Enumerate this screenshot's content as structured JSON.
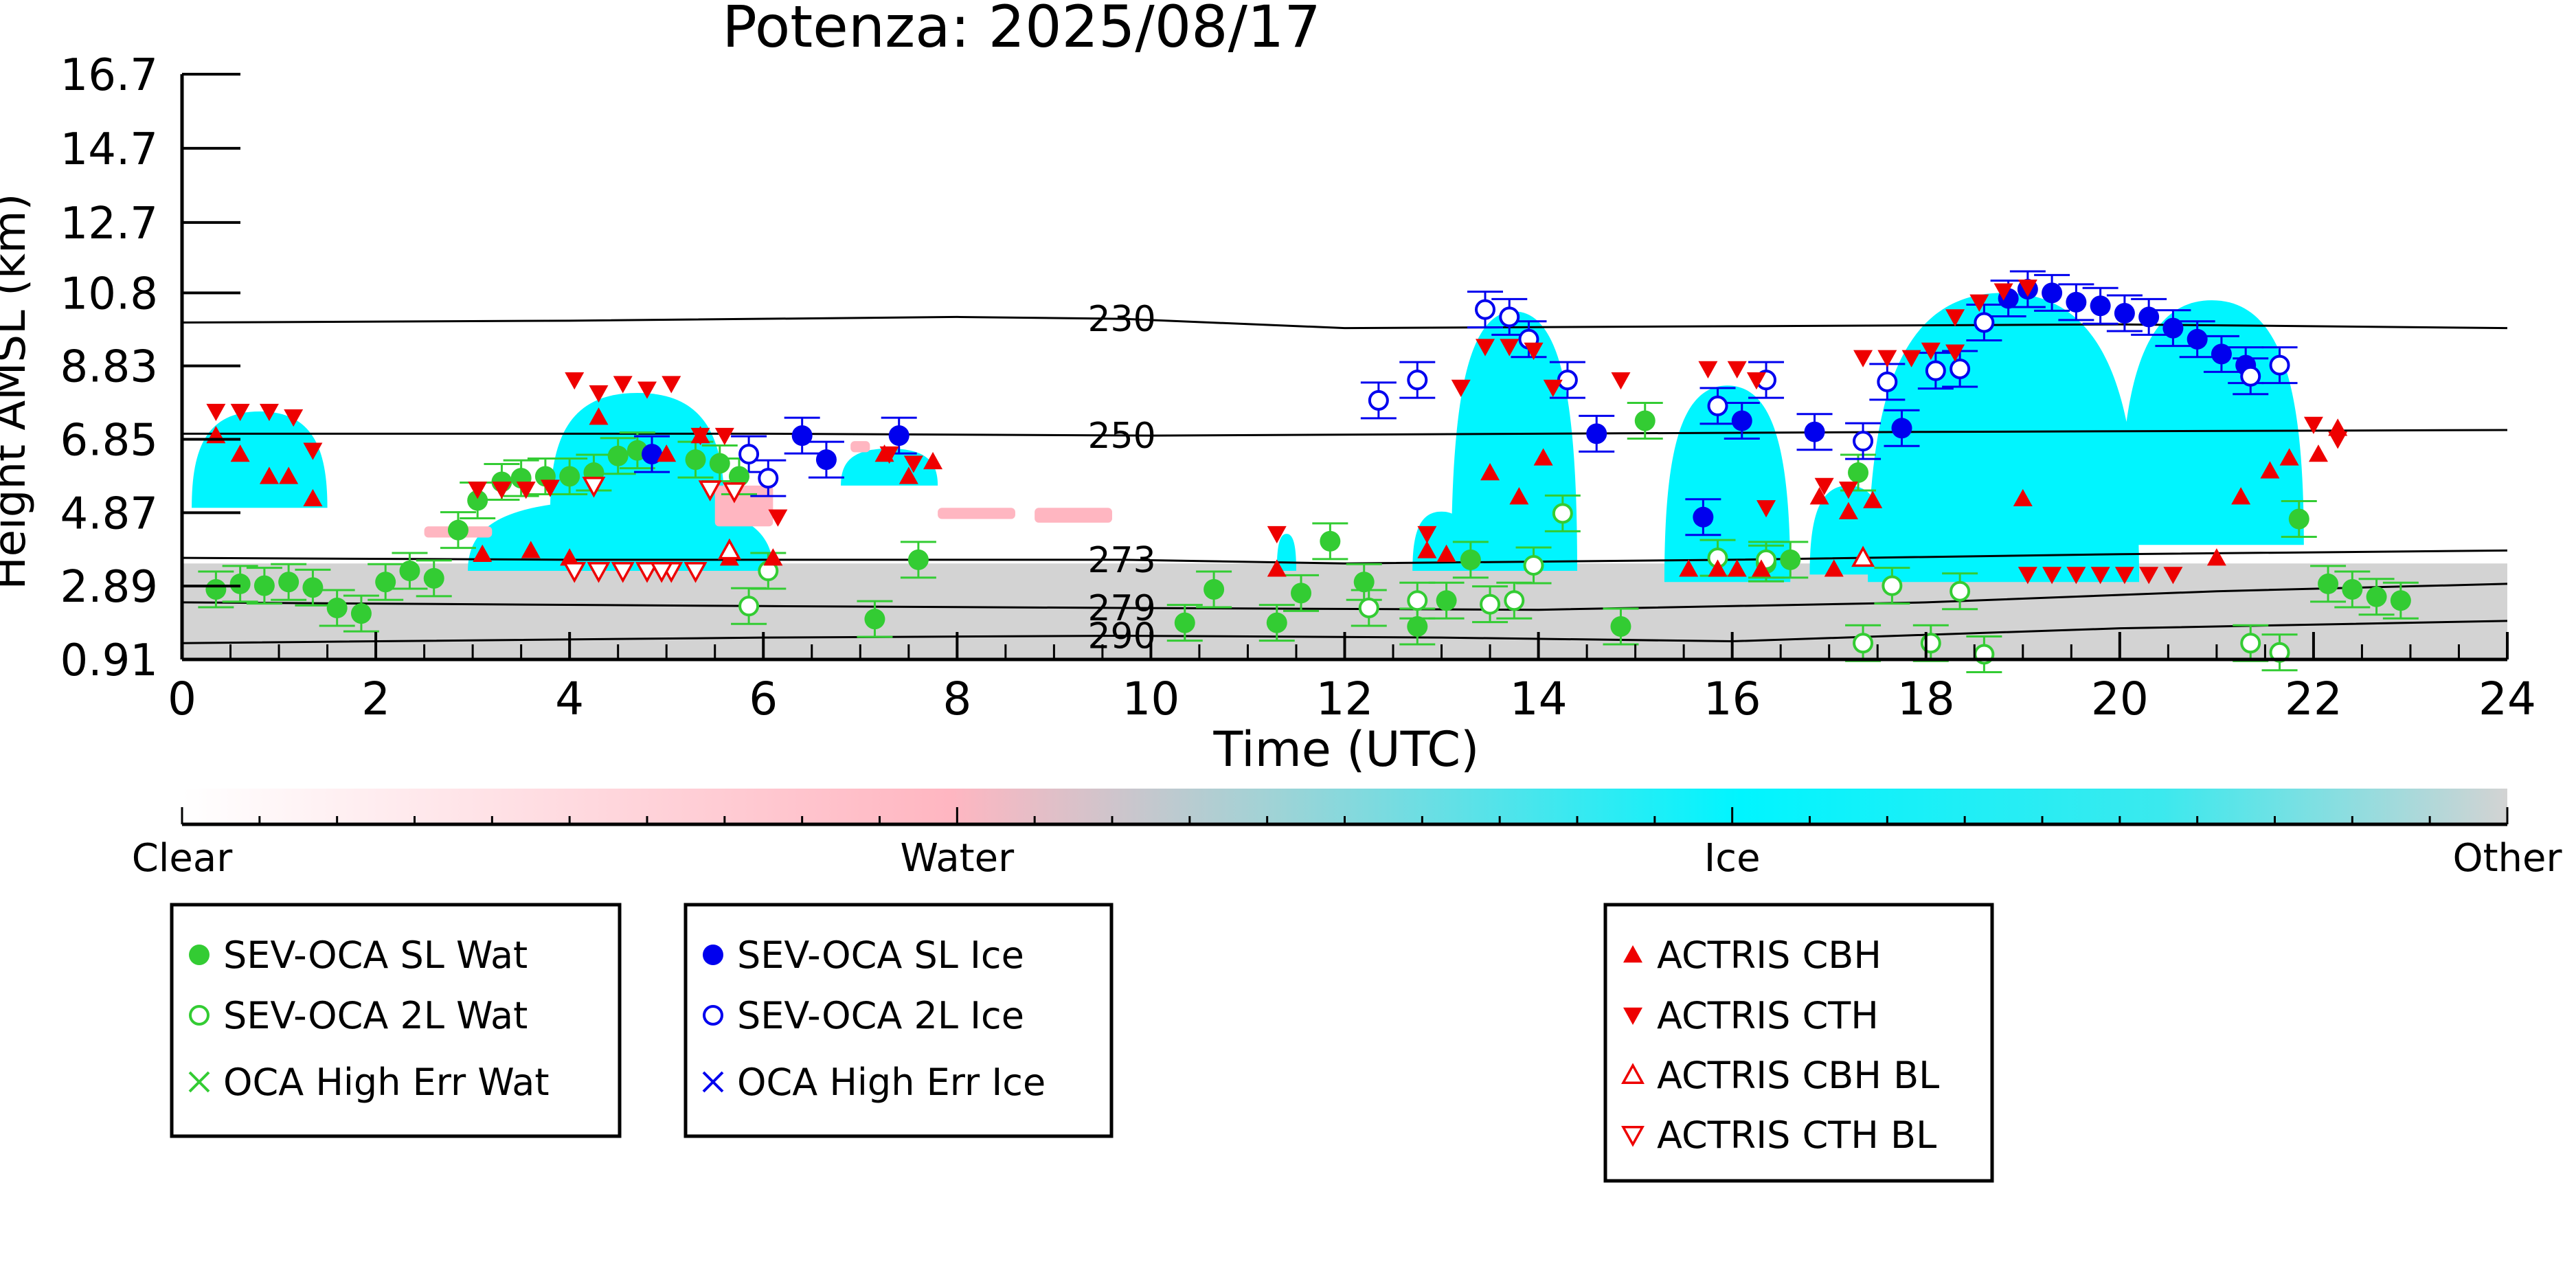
{
  "chart_data": {
    "type": "scatter",
    "title": "Potenza: 2025/08/17",
    "xlabel": "Time (UTC)",
    "ylabel": "Height AMSL (km)",
    "xlim": [
      0,
      24
    ],
    "ylim": [
      0.91,
      16.7
    ],
    "x_ticks": [
      "0",
      "2",
      "4",
      "6",
      "8",
      "10",
      "12",
      "14",
      "16",
      "18",
      "20",
      "22",
      "24"
    ],
    "y_ticks": [
      "16.7",
      "14.7",
      "12.7",
      "10.8",
      "8.83",
      "6.85",
      "4.87",
      "2.89",
      "0.91"
    ],
    "grid": false,
    "isotherms": [
      {
        "label": "230",
        "points": [
          [
            0,
            10.0
          ],
          [
            4,
            10.05
          ],
          [
            8,
            10.15
          ],
          [
            9.7,
            10.1
          ],
          [
            12,
            9.85
          ],
          [
            16,
            9.9
          ],
          [
            20,
            9.95
          ],
          [
            24,
            9.85
          ]
        ]
      },
      {
        "label": "250",
        "points": [
          [
            0,
            7.0
          ],
          [
            6,
            7.0
          ],
          [
            10,
            6.95
          ],
          [
            14,
            7.0
          ],
          [
            18,
            7.05
          ],
          [
            24,
            7.1
          ]
        ]
      },
      {
        "label": "273",
        "points": [
          [
            0,
            3.65
          ],
          [
            4,
            3.6
          ],
          [
            9.7,
            3.6
          ],
          [
            12,
            3.5
          ],
          [
            16,
            3.6
          ],
          [
            20,
            3.75
          ],
          [
            24,
            3.85
          ]
        ]
      },
      {
        "label": "279",
        "points": [
          [
            0,
            2.45
          ],
          [
            6,
            2.35
          ],
          [
            9.7,
            2.3
          ],
          [
            14,
            2.25
          ],
          [
            18,
            2.45
          ],
          [
            21,
            2.75
          ],
          [
            24,
            2.95
          ]
        ]
      },
      {
        "label": "290",
        "points": [
          [
            0,
            1.35
          ],
          [
            6,
            1.5
          ],
          [
            9.7,
            1.55
          ],
          [
            13,
            1.5
          ],
          [
            16,
            1.4
          ],
          [
            20,
            1.75
          ],
          [
            24,
            1.95
          ]
        ]
      }
    ],
    "cloud_phase": {
      "ice_regions": [
        {
          "x": [
            0.1,
            1.5
          ],
          "y": [
            5.0,
            7.6
          ]
        },
        {
          "x": 2.95,
          "x2": 6.1,
          "y": [
            3.3,
            5.2
          ]
        },
        {
          "x": [
            3.8,
            5.6
          ],
          "y": [
            4.9,
            8.1
          ]
        },
        {
          "x": [
            6.8,
            7.8
          ],
          "y": [
            5.6,
            6.6
          ]
        },
        {
          "x": [
            11.3,
            11.5
          ],
          "y": [
            3.3,
            4.3
          ]
        },
        {
          "x": [
            12.7,
            13.3
          ],
          "y": [
            3.3,
            4.9
          ]
        },
        {
          "x": [
            13.1,
            14.4
          ],
          "y": [
            3.3,
            10.3
          ]
        },
        {
          "x": [
            15.3,
            16.6
          ],
          "y": [
            3.0,
            8.3
          ]
        },
        {
          "x": [
            16.8,
            17.6
          ],
          "y": [
            3.2,
            5.6
          ]
        },
        {
          "x": [
            17.4,
            20.2
          ],
          "y": [
            3.0,
            10.8
          ]
        },
        {
          "x": [
            20.0,
            21.9
          ],
          "y": [
            4.0,
            10.6
          ]
        }
      ],
      "water_regions": [
        {
          "x": [
            2.5,
            3.2
          ],
          "y": [
            4.2,
            4.5
          ]
        },
        {
          "x": [
            5.5,
            6.1
          ],
          "y": [
            4.5,
            5.6
          ]
        },
        {
          "x": [
            7.8,
            8.6
          ],
          "y": [
            4.7,
            5.0
          ]
        },
        {
          "x": [
            8.8,
            9.6
          ],
          "y": [
            4.6,
            5.0
          ]
        },
        {
          "x": [
            6.9,
            7.1
          ],
          "y": [
            6.5,
            6.8
          ]
        }
      ],
      "other_layer": {
        "x": [
          0,
          24
        ],
        "y": [
          0.91,
          3.5
        ]
      }
    },
    "series": [
      {
        "name": "SEV-OCA SL Wat",
        "color": "#33cc33",
        "marker": "filled-circle",
        "points": [
          [
            0.35,
            2.8
          ],
          [
            0.6,
            2.95
          ],
          [
            0.85,
            2.9
          ],
          [
            1.1,
            3.0
          ],
          [
            1.35,
            2.85
          ],
          [
            1.6,
            2.3
          ],
          [
            1.85,
            2.15
          ],
          [
            2.1,
            3.0
          ],
          [
            2.35,
            3.3
          ],
          [
            2.6,
            3.1
          ],
          [
            2.85,
            4.4
          ],
          [
            3.05,
            5.2
          ],
          [
            3.3,
            5.7
          ],
          [
            3.5,
            5.8
          ],
          [
            3.75,
            5.85
          ],
          [
            4.0,
            5.85
          ],
          [
            4.25,
            5.95
          ],
          [
            4.5,
            6.4
          ],
          [
            4.7,
            6.55
          ],
          [
            5.3,
            6.3
          ],
          [
            5.55,
            6.2
          ],
          [
            5.75,
            5.85
          ],
          [
            7.15,
            2.0
          ],
          [
            7.6,
            3.6
          ],
          [
            10.35,
            1.9
          ],
          [
            10.65,
            2.8
          ],
          [
            11.3,
            1.9
          ],
          [
            11.55,
            2.7
          ],
          [
            11.85,
            4.1
          ],
          [
            12.2,
            3.0
          ],
          [
            12.75,
            1.8
          ],
          [
            13.05,
            2.5
          ],
          [
            13.3,
            3.6
          ],
          [
            14.85,
            1.8
          ],
          [
            15.1,
            7.35
          ],
          [
            16.35,
            3.5
          ],
          [
            16.6,
            3.6
          ],
          [
            17.3,
            5.95
          ],
          [
            21.85,
            4.7
          ],
          [
            22.15,
            2.95
          ],
          [
            22.4,
            2.8
          ],
          [
            22.65,
            2.6
          ],
          [
            22.9,
            2.5
          ]
        ]
      },
      {
        "name": "SEV-OCA 2L Wat",
        "color": "#33cc33",
        "marker": "open-circle",
        "points": [
          [
            5.85,
            2.35
          ],
          [
            6.05,
            3.3
          ],
          [
            12.25,
            2.3
          ],
          [
            12.75,
            2.5
          ],
          [
            13.5,
            2.4
          ],
          [
            13.75,
            2.5
          ],
          [
            13.95,
            3.45
          ],
          [
            14.25,
            4.85
          ],
          [
            15.85,
            3.65
          ],
          [
            16.35,
            3.6
          ],
          [
            17.35,
            1.35
          ],
          [
            17.65,
            2.9
          ],
          [
            18.05,
            1.35
          ],
          [
            18.35,
            2.75
          ],
          [
            18.6,
            1.05
          ],
          [
            21.35,
            1.35
          ],
          [
            21.65,
            1.1
          ]
        ]
      },
      {
        "name": "OCA High Err Wat",
        "color": "#33cc33",
        "marker": "x",
        "points": []
      },
      {
        "name": "SEV-OCA SL Ice",
        "color": "#0000ee",
        "marker": "filled-circle",
        "points": [
          [
            4.85,
            6.45
          ],
          [
            6.4,
            6.95
          ],
          [
            6.65,
            6.3
          ],
          [
            7.4,
            6.95
          ],
          [
            14.6,
            7.0
          ],
          [
            15.7,
            4.75
          ],
          [
            16.1,
            7.35
          ],
          [
            16.85,
            7.05
          ],
          [
            17.75,
            7.15
          ],
          [
            18.85,
            10.65
          ],
          [
            19.05,
            10.9
          ],
          [
            19.3,
            10.8
          ],
          [
            19.55,
            10.55
          ],
          [
            19.8,
            10.45
          ],
          [
            20.05,
            10.25
          ],
          [
            20.3,
            10.15
          ],
          [
            20.55,
            9.85
          ],
          [
            20.8,
            9.55
          ],
          [
            21.05,
            9.15
          ],
          [
            21.3,
            8.85
          ]
        ]
      },
      {
        "name": "SEV-OCA 2L Ice",
        "color": "#0000ee",
        "marker": "open-circle",
        "points": [
          [
            5.85,
            6.45
          ],
          [
            6.05,
            5.8
          ],
          [
            12.35,
            7.9
          ],
          [
            12.75,
            8.45
          ],
          [
            13.45,
            10.35
          ],
          [
            13.7,
            10.15
          ],
          [
            13.9,
            9.55
          ],
          [
            14.3,
            8.45
          ],
          [
            15.85,
            7.75
          ],
          [
            16.35,
            8.45
          ],
          [
            17.35,
            6.8
          ],
          [
            17.6,
            8.4
          ],
          [
            18.1,
            8.7
          ],
          [
            18.35,
            8.75
          ],
          [
            18.6,
            10.0
          ],
          [
            21.35,
            8.55
          ],
          [
            21.65,
            8.85
          ]
        ]
      },
      {
        "name": "OCA High Err Ice",
        "color": "#0000ee",
        "marker": "x",
        "points": []
      },
      {
        "name": "ACTRIS CBH",
        "color": "#ee0000",
        "marker": "filled-triangle-up",
        "points": [
          [
            0.35,
            6.95
          ],
          [
            0.6,
            6.45
          ],
          [
            0.9,
            5.85
          ],
          [
            1.1,
            5.85
          ],
          [
            1.35,
            5.25
          ],
          [
            3.1,
            3.75
          ],
          [
            3.6,
            3.85
          ],
          [
            4.0,
            3.65
          ],
          [
            4.3,
            7.45
          ],
          [
            5.0,
            6.45
          ],
          [
            5.35,
            6.95
          ],
          [
            5.65,
            3.65
          ],
          [
            6.1,
            3.65
          ],
          [
            7.25,
            6.45
          ],
          [
            7.5,
            5.85
          ],
          [
            7.75,
            6.25
          ],
          [
            11.3,
            3.35
          ],
          [
            12.85,
            3.85
          ],
          [
            13.05,
            3.75
          ],
          [
            13.5,
            5.95
          ],
          [
            13.8,
            5.3
          ],
          [
            14.05,
            6.35
          ],
          [
            15.55,
            3.35
          ],
          [
            15.85,
            3.35
          ],
          [
            16.05,
            3.35
          ],
          [
            16.3,
            3.35
          ],
          [
            16.9,
            5.3
          ],
          [
            17.2,
            4.9
          ],
          [
            17.45,
            5.2
          ],
          [
            17.05,
            3.35
          ],
          [
            19.0,
            5.25
          ],
          [
            21.0,
            3.65
          ],
          [
            21.25,
            5.3
          ],
          [
            21.55,
            6.0
          ],
          [
            21.75,
            6.35
          ],
          [
            22.05,
            6.45
          ],
          [
            22.25,
            7.15
          ]
        ]
      },
      {
        "name": "ACTRIS CTH",
        "color": "#ee0000",
        "marker": "filled-triangle-down",
        "points": [
          [
            0.35,
            7.6
          ],
          [
            0.6,
            7.6
          ],
          [
            0.9,
            7.6
          ],
          [
            1.15,
            7.45
          ],
          [
            1.35,
            6.55
          ],
          [
            3.05,
            5.5
          ],
          [
            3.3,
            5.5
          ],
          [
            3.55,
            5.5
          ],
          [
            3.8,
            5.55
          ],
          [
            4.05,
            8.45
          ],
          [
            4.3,
            8.1
          ],
          [
            4.55,
            8.35
          ],
          [
            4.8,
            8.2
          ],
          [
            5.05,
            8.35
          ],
          [
            5.35,
            6.95
          ],
          [
            5.6,
            6.95
          ],
          [
            6.15,
            4.75
          ],
          [
            7.3,
            6.45
          ],
          [
            7.55,
            6.2
          ],
          [
            11.3,
            4.3
          ],
          [
            12.85,
            4.3
          ],
          [
            13.2,
            8.25
          ],
          [
            13.45,
            9.35
          ],
          [
            13.7,
            9.35
          ],
          [
            13.95,
            9.25
          ],
          [
            14.15,
            8.25
          ],
          [
            14.85,
            8.45
          ],
          [
            15.75,
            8.75
          ],
          [
            16.05,
            8.75
          ],
          [
            16.25,
            8.45
          ],
          [
            16.35,
            5.0
          ],
          [
            16.95,
            5.6
          ],
          [
            17.2,
            5.5
          ],
          [
            17.35,
            9.05
          ],
          [
            17.6,
            9.05
          ],
          [
            17.85,
            9.05
          ],
          [
            18.05,
            9.25
          ],
          [
            18.3,
            9.2
          ],
          [
            18.3,
            10.15
          ],
          [
            18.55,
            10.55
          ],
          [
            18.8,
            10.85
          ],
          [
            19.05,
            10.95
          ],
          [
            19.05,
            3.2
          ],
          [
            19.3,
            3.2
          ],
          [
            19.55,
            3.2
          ],
          [
            19.8,
            3.2
          ],
          [
            20.05,
            3.2
          ],
          [
            20.3,
            3.2
          ],
          [
            20.55,
            3.2
          ],
          [
            22.0,
            7.25
          ],
          [
            22.25,
            6.85
          ]
        ]
      },
      {
        "name": "ACTRIS CBH BL",
        "color": "#ee0000",
        "marker": "open-triangle-up",
        "points": [
          [
            5.65,
            3.85
          ],
          [
            17.35,
            3.65
          ]
        ]
      },
      {
        "name": "ACTRIS CTH BL",
        "color": "#ee0000",
        "marker": "open-triangle-down",
        "points": [
          [
            4.05,
            3.3
          ],
          [
            4.3,
            3.3
          ],
          [
            4.55,
            3.3
          ],
          [
            4.8,
            3.3
          ],
          [
            5.05,
            3.3
          ],
          [
            5.3,
            3.3
          ],
          [
            5.45,
            5.5
          ],
          [
            5.7,
            5.45
          ],
          [
            4.25,
            5.6
          ],
          [
            4.95,
            3.3
          ]
        ]
      }
    ],
    "colorbar": {
      "labels": [
        "Clear",
        "Water",
        "Ice",
        "Other"
      ],
      "colors": [
        "#ffffff",
        "#ffb6c1",
        "#00f5ff",
        "#d3d3d3"
      ]
    },
    "legends": [
      {
        "entries": [
          "SEV-OCA SL Wat",
          "SEV-OCA 2L Wat",
          "OCA High Err Wat"
        ]
      },
      {
        "entries": [
          "SEV-OCA SL Ice",
          "SEV-OCA 2L Ice",
          "OCA High Err Ice"
        ]
      },
      {
        "entries": [
          "ACTRIS CBH",
          "ACTRIS CTH",
          "ACTRIS CBH BL",
          "ACTRIS CTH BL"
        ]
      }
    ]
  }
}
